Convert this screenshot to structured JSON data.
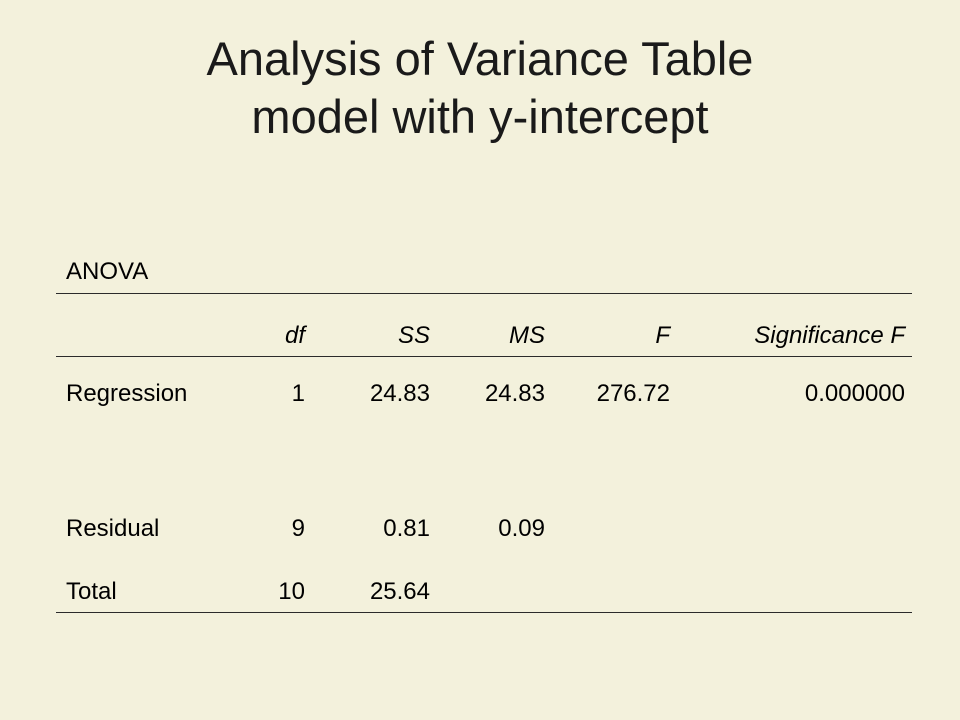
{
  "slide": {
    "title_line1": "Analysis of Variance Table",
    "title_line2": "model with y-intercept"
  },
  "table": {
    "label": "ANOVA",
    "headers": {
      "name": "",
      "df": "df",
      "ss": "SS",
      "ms": "MS",
      "f": "F",
      "sig": "Significance F"
    },
    "rows": [
      {
        "name": "Regression",
        "df": "1",
        "ss": "24.83",
        "ms": "24.83",
        "f": "276.72",
        "sig": "0.000000"
      },
      {
        "name": "Residual",
        "df": "9",
        "ss": "0.81",
        "ms": "0.09",
        "f": "",
        "sig": ""
      },
      {
        "name": "Total",
        "df": "10",
        "ss": "25.64",
        "ms": "",
        "f": "",
        "sig": ""
      }
    ]
  }
}
